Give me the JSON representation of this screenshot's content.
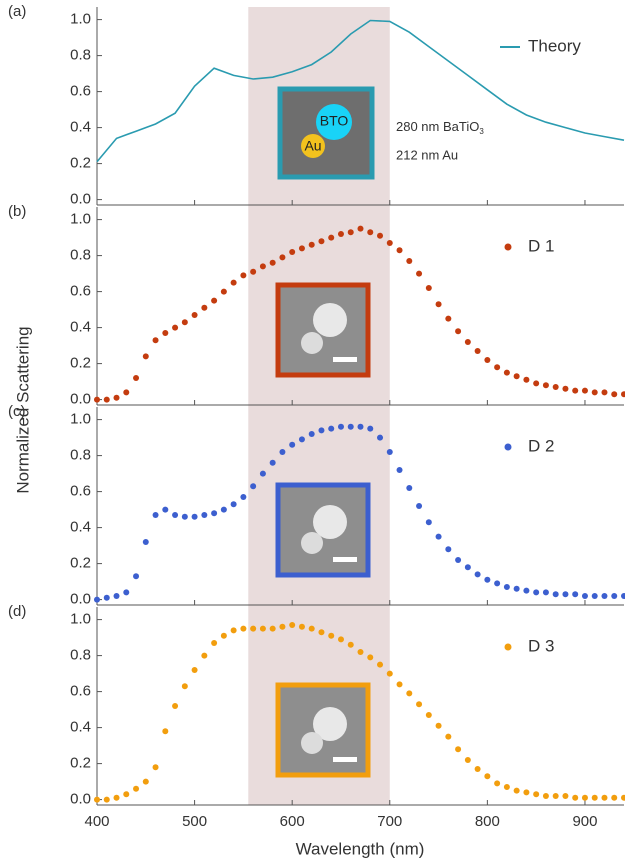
{
  "figure": {
    "xlabel": "Wavelength (nm)",
    "ylabel": "Normalized Scattering"
  },
  "chart_data": [
    {
      "type": "line",
      "label": "(a)",
      "legend": "right",
      "shaded_region": [
        555,
        700
      ],
      "xlim": [
        400,
        940
      ],
      "ylim": [
        -0.03,
        1.07
      ],
      "xticks": [
        400,
        500,
        600,
        700,
        800,
        900
      ],
      "yticks": [
        {
          "value": 0,
          "label": "0.0"
        },
        0.2,
        0.4,
        0.6,
        0.8,
        {
          "value": 1,
          "label": "1.0"
        }
      ],
      "x": [
        400,
        420,
        440,
        460,
        480,
        500,
        520,
        540,
        560,
        580,
        600,
        620,
        640,
        660,
        680,
        700,
        720,
        740,
        760,
        780,
        800,
        820,
        840,
        860,
        880,
        900,
        920,
        940
      ],
      "series": [
        {
          "name": "Theory",
          "color": "#2a9bb0",
          "values": [
            0.21,
            0.34,
            0.38,
            0.42,
            0.48,
            0.63,
            0.73,
            0.69,
            0.67,
            0.68,
            0.71,
            0.75,
            0.82,
            0.92,
            0.995,
            0.99,
            0.93,
            0.85,
            0.77,
            0.69,
            0.61,
            0.53,
            0.47,
            0.43,
            0.4,
            0.37,
            0.35,
            0.33
          ]
        }
      ],
      "inset_labels": {
        "particle_1": "BTO",
        "particle_2": "Au",
        "text_1": "280 nm BaTiO",
        "text_1_subscript": "3",
        "text_2": "212 nm Au"
      }
    },
    {
      "type": "scatter",
      "label": "(b)",
      "legend": "right",
      "shaded_region": [
        555,
        700
      ],
      "xlim": [
        400,
        940
      ],
      "ylim": [
        -0.03,
        1.07
      ],
      "xticks": [
        400,
        500,
        600,
        700,
        800,
        900
      ],
      "yticks": [
        {
          "value": 0,
          "label": "0.0"
        },
        0.2,
        0.4,
        0.6,
        0.8,
        {
          "value": 1,
          "label": "1.0"
        }
      ],
      "x": [
        400,
        410,
        420,
        430,
        440,
        450,
        460,
        470,
        480,
        490,
        500,
        510,
        520,
        530,
        540,
        550,
        560,
        570,
        580,
        590,
        600,
        610,
        620,
        630,
        640,
        650,
        660,
        670,
        680,
        690,
        700,
        710,
        720,
        730,
        740,
        750,
        760,
        770,
        780,
        790,
        800,
        810,
        820,
        830,
        840,
        850,
        860,
        870,
        880,
        890,
        900,
        910,
        920,
        930,
        940
      ],
      "series": [
        {
          "name": "D 1",
          "color": "#c43c0f",
          "values": [
            0,
            0,
            0.01,
            0.04,
            0.12,
            0.24,
            0.33,
            0.37,
            0.4,
            0.43,
            0.47,
            0.51,
            0.55,
            0.6,
            0.65,
            0.69,
            0.71,
            0.74,
            0.76,
            0.79,
            0.82,
            0.84,
            0.86,
            0.88,
            0.9,
            0.92,
            0.93,
            0.95,
            0.93,
            0.91,
            0.87,
            0.83,
            0.77,
            0.7,
            0.62,
            0.53,
            0.45,
            0.38,
            0.32,
            0.27,
            0.22,
            0.18,
            0.15,
            0.13,
            0.11,
            0.09,
            0.08,
            0.07,
            0.06,
            0.05,
            0.05,
            0.04,
            0.04,
            0.03,
            0.03
          ]
        }
      ]
    },
    {
      "type": "scatter",
      "label": "(c)",
      "legend": "right",
      "shaded_region": [
        555,
        700
      ],
      "xlim": [
        400,
        940
      ],
      "ylim": [
        -0.03,
        1.07
      ],
      "xticks": [
        400,
        500,
        600,
        700,
        800,
        900
      ],
      "yticks": [
        {
          "value": 0,
          "label": "0.0"
        },
        0.2,
        0.4,
        0.6,
        0.8,
        {
          "value": 1,
          "label": "1.0"
        }
      ],
      "x": [
        400,
        410,
        420,
        430,
        440,
        450,
        460,
        470,
        480,
        490,
        500,
        510,
        520,
        530,
        540,
        550,
        560,
        570,
        580,
        590,
        600,
        610,
        620,
        630,
        640,
        650,
        660,
        670,
        680,
        690,
        700,
        710,
        720,
        730,
        740,
        750,
        760,
        770,
        780,
        790,
        800,
        810,
        820,
        830,
        840,
        850,
        860,
        870,
        880,
        890,
        900,
        910,
        920,
        930,
        940
      ],
      "series": [
        {
          "name": "D 2",
          "color": "#3c5fcf",
          "values": [
            0,
            0.01,
            0.02,
            0.04,
            0.13,
            0.32,
            0.47,
            0.5,
            0.47,
            0.46,
            0.46,
            0.47,
            0.48,
            0.5,
            0.53,
            0.57,
            0.63,
            0.7,
            0.76,
            0.82,
            0.86,
            0.89,
            0.92,
            0.94,
            0.95,
            0.96,
            0.96,
            0.96,
            0.95,
            0.9,
            0.82,
            0.72,
            0.62,
            0.52,
            0.43,
            0.35,
            0.28,
            0.22,
            0.18,
            0.14,
            0.11,
            0.09,
            0.07,
            0.06,
            0.05,
            0.04,
            0.04,
            0.03,
            0.03,
            0.03,
            0.02,
            0.02,
            0.02,
            0.02,
            0.02
          ]
        }
      ]
    },
    {
      "type": "scatter",
      "label": "(d)",
      "legend": "right",
      "shaded_region": [
        555,
        700
      ],
      "xlim": [
        400,
        940
      ],
      "ylim": [
        -0.03,
        1.07
      ],
      "xticks": [
        400,
        500,
        600,
        700,
        800,
        900
      ],
      "yticks": [
        {
          "value": 0,
          "label": "0.0"
        },
        0.2,
        0.4,
        0.6,
        0.8,
        {
          "value": 1,
          "label": "1.0"
        }
      ],
      "x": [
        400,
        410,
        420,
        430,
        440,
        450,
        460,
        470,
        480,
        490,
        500,
        510,
        520,
        530,
        540,
        550,
        560,
        570,
        580,
        590,
        600,
        610,
        620,
        630,
        640,
        650,
        660,
        670,
        680,
        690,
        700,
        710,
        720,
        730,
        740,
        750,
        760,
        770,
        780,
        790,
        800,
        810,
        820,
        830,
        840,
        850,
        860,
        870,
        880,
        890,
        900,
        910,
        920,
        930,
        940
      ],
      "series": [
        {
          "name": "D 3",
          "color": "#f29e0e",
          "values": [
            0,
            0,
            0.01,
            0.03,
            0.06,
            0.1,
            0.18,
            0.38,
            0.52,
            0.63,
            0.72,
            0.8,
            0.87,
            0.91,
            0.94,
            0.95,
            0.95,
            0.95,
            0.95,
            0.96,
            0.97,
            0.96,
            0.95,
            0.93,
            0.91,
            0.89,
            0.86,
            0.82,
            0.79,
            0.75,
            0.7,
            0.64,
            0.59,
            0.53,
            0.47,
            0.41,
            0.35,
            0.28,
            0.22,
            0.17,
            0.13,
            0.09,
            0.07,
            0.05,
            0.04,
            0.03,
            0.02,
            0.02,
            0.02,
            0.01,
            0.01,
            0.01,
            0.01,
            0.01,
            0.01
          ]
        }
      ]
    }
  ]
}
